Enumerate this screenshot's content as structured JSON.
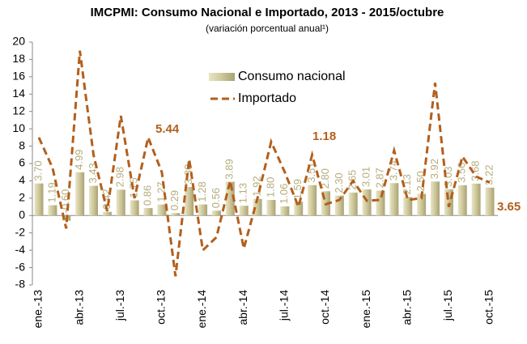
{
  "chart_data": {
    "type": "combo",
    "title": "IMCPMI: Consumo Nacional e Importado, 2013 - 2015/octubre",
    "subtitle": "(variación porcentual anual¹)",
    "categories": [
      "ene.-13",
      null,
      null,
      "abr.-13",
      null,
      null,
      "jul.-13",
      null,
      null,
      "oct.-13",
      null,
      null,
      "ene.-14",
      null,
      null,
      "abr.-14",
      null,
      null,
      "jul.-14",
      null,
      null,
      "oct.-14",
      null,
      null,
      "ene.-15",
      null,
      null,
      "abr.-15",
      null,
      null,
      "jul.-15",
      null,
      null,
      "oct.-15"
    ],
    "series": [
      {
        "name": "Consumo nacional",
        "type": "bar",
        "color": "#cdc79a",
        "values": [
          3.7,
          1.19,
          -0.6,
          4.99,
          3.43,
          0.42,
          2.98,
          1.75,
          0.86,
          1.27,
          0.29,
          3.3,
          1.28,
          0.56,
          3.89,
          1.13,
          1.92,
          1.8,
          1.06,
          1.59,
          3.51,
          2.8,
          2.3,
          2.65,
          3.01,
          2.87,
          3.74,
          2.13,
          2.5,
          3.92,
          3.03,
          3.5,
          3.68,
          3.22
        ],
        "value_labels": [
          "3.70",
          "1.19",
          "-0.60",
          "4.99",
          "3.43",
          "0.42",
          "2.98",
          "1.75",
          "0.86",
          "1.27",
          "0.29",
          "3.30",
          "1.28",
          "0.56",
          "3.89",
          "1.13",
          "1.92",
          "1.80",
          "1.06",
          "1.59",
          "3.51",
          "2.80",
          "2.30",
          "2.65",
          "3.01",
          "2.87",
          "3.74",
          "2.13",
          "2.50",
          "3.92",
          "3.03",
          "3.50",
          "3.68",
          "3.22"
        ]
      },
      {
        "name": "Importado",
        "type": "line",
        "color": "#b35f1c",
        "values": [
          9.0,
          5.5,
          -1.5,
          19.0,
          7.0,
          0.5,
          11.5,
          2.0,
          9.0,
          5.0,
          -7.0,
          6.5,
          -4.0,
          -2.5,
          4.0,
          -3.8,
          2.0,
          8.5,
          5.0,
          1.0,
          7.0,
          1.3,
          1.8,
          4.0,
          1.7,
          1.8,
          7.5,
          1.8,
          2.0,
          15.3,
          1.0,
          6.8,
          4.5,
          3.8
        ]
      }
    ],
    "annotations": [
      "5.44",
      "1.18",
      "3.65"
    ],
    "ylim": [
      -8,
      20
    ],
    "yticks": [
      -8,
      -6,
      -4,
      -2,
      0,
      2,
      4,
      6,
      8,
      10,
      12,
      14,
      16,
      18,
      20
    ]
  }
}
